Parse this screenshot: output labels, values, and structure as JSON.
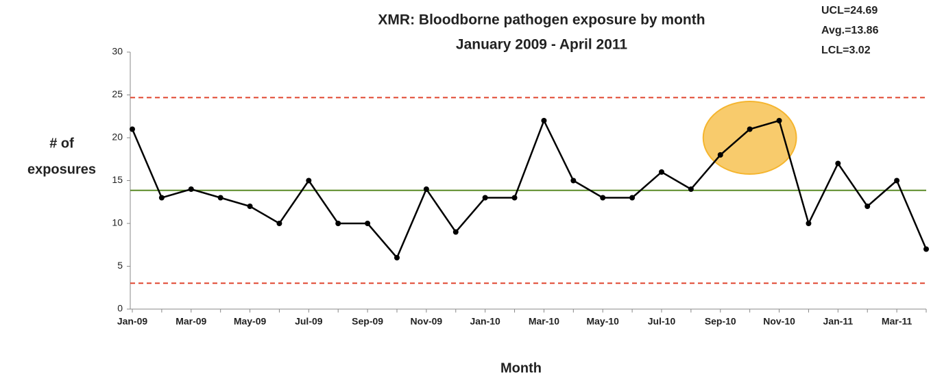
{
  "chart_data": {
    "type": "line",
    "title": "XMR: Bloodborne pathogen exposure by month",
    "subtitle": "January 2009 - April 2011",
    "xlabel": "Month",
    "ylabel": [
      "# of",
      "exposures"
    ],
    "categories": [
      "Jan-09",
      null,
      "Mar-09",
      null,
      "May-09",
      null,
      "Jul-09",
      null,
      "Sep-09",
      null,
      "Nov-09",
      null,
      "Jan-10",
      null,
      "Mar-10",
      null,
      "May-10",
      null,
      "Jul-10",
      null,
      "Sep-10",
      null,
      "Nov-10",
      null,
      "Jan-11",
      null,
      "Mar-11",
      null
    ],
    "series": [
      {
        "color": "#000000",
        "values": [
          21,
          13,
          14,
          13,
          12,
          10,
          15,
          10,
          10,
          6,
          14,
          9,
          13,
          13,
          22,
          15,
          13,
          13,
          16,
          14,
          18,
          21,
          22,
          10,
          17,
          12,
          15,
          7
        ]
      }
    ],
    "control_lines": [
      {
        "value": 24.69,
        "label": "UCL=24.69",
        "color": "#e0452e",
        "dashed": true
      },
      {
        "value": 13.86,
        "label": "Avg.=13.86",
        "color": "#5a8a26",
        "dashed": false
      },
      {
        "value": 3.02,
        "label": "LCL=3.02",
        "color": "#e0452e",
        "dashed": true
      }
    ],
    "highlight": {
      "from": 20,
      "to": 22,
      "color": "#f5b52e"
    },
    "ylim": [
      0,
      30
    ],
    "yticks": [
      0,
      5,
      10,
      15,
      20,
      25,
      30
    ]
  }
}
